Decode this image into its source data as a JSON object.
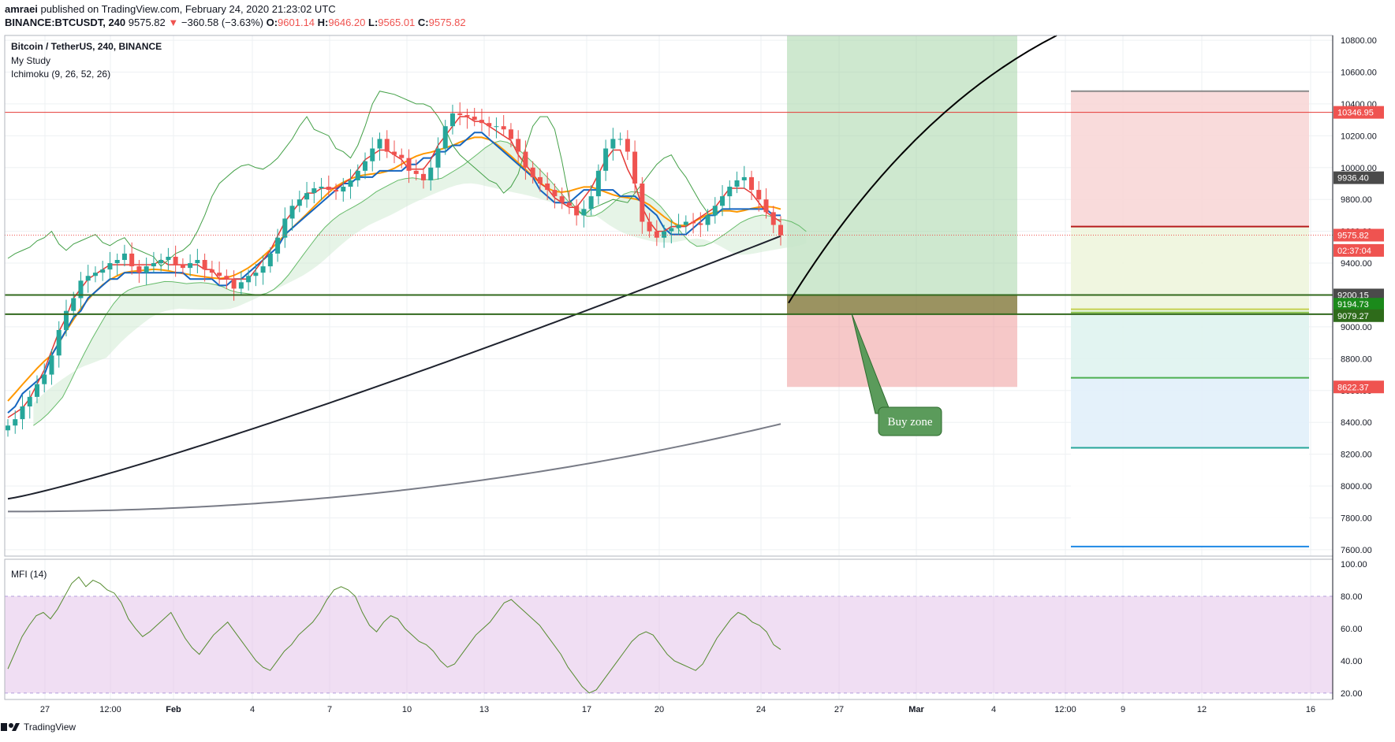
{
  "header": {
    "author": "amraei",
    "published": "published on TradingView.com, February 24, 2020 21:23:02 UTC",
    "symbol": "BINANCE:BTCUSDT, 240",
    "last": "9575.82",
    "change": "−360.58 (−3.63%)",
    "o_label": "O:",
    "o": "9601.14",
    "h_label": "H:",
    "h": "9646.20",
    "l_label": "L:",
    "l": "9565.01",
    "c_label": "C:",
    "c": "9575.82"
  },
  "legend": {
    "title": "Bitcoin / TetherUS, 240, BINANCE",
    "study": "My Study",
    "ichimoku": "Ichimoku (9, 26, 52, 26)",
    "mfi": "MFI (14)"
  },
  "annotation": {
    "text": "Buy zone"
  },
  "footer": {
    "brand": "TradingView"
  },
  "colors": {
    "up": "#26a69a",
    "down": "#ef5350",
    "tenkan": "#e53935",
    "kijun": "#1565c0",
    "ema": "#ff9800",
    "ma200": "#1e222d",
    "ma_long": "#787b86",
    "chikou": "#43a047",
    "hline_red": "#e53935",
    "hline_green": "#33691e",
    "mfi_line": "#558b2f",
    "mfi_band": "#e1bee7"
  },
  "chart_data": [
    {
      "type": "candlestick",
      "title": "Bitcoin / TetherUS, 240, BINANCE",
      "x_ticks": [
        "27",
        "12:00",
        "Feb",
        "4",
        "7",
        "10",
        "13",
        "17",
        "20",
        "24",
        "27",
        "Mar",
        "4",
        "12:00",
        "9",
        "12",
        "16"
      ],
      "y_ticks": [
        7600,
        7800,
        8000,
        8200,
        8400,
        8600,
        8800,
        9000,
        9200,
        9400,
        9600,
        9800,
        10000,
        10200,
        10400,
        10600,
        10800
      ],
      "ylim": [
        7560,
        10830
      ],
      "price_labels": [
        {
          "value": "10346.95",
          "color": "#ef5350"
        },
        {
          "value": "9936.40",
          "color": "#4a4a4a"
        },
        {
          "value": "9575.82",
          "color": "#ef5350"
        },
        {
          "value": "02:37:04",
          "color": "#ef5350"
        },
        {
          "value": "9200.15",
          "color": "#4a4a4a"
        },
        {
          "value": "9194.73",
          "color": "#1b8a1b"
        },
        {
          "value": "9079.27",
          "color": "#2e6b1a"
        },
        {
          "value": "8622.37",
          "color": "#ef5350"
        }
      ],
      "horizontal_lines": [
        10346.95,
        9200.15,
        9079.27
      ],
      "current_price": 9575.82,
      "long_position": {
        "entry": 9194.73,
        "target": 10830,
        "stop": 8622.37,
        "zone_top": 9200.15,
        "zone_bottom": 9079.27
      },
      "fib_levels": [
        10480,
        9630,
        9110,
        9090,
        8680,
        8240,
        7620
      ],
      "close_series": [
        8380,
        8420,
        8500,
        8560,
        8640,
        8700,
        8820,
        8980,
        9100,
        9180,
        9290,
        9320,
        9340,
        9360,
        9400,
        9420,
        9460,
        9380,
        9340,
        9380,
        9400,
        9420,
        9440,
        9390,
        9370,
        9400,
        9420,
        9360,
        9340,
        9320,
        9300,
        9240,
        9280,
        9320,
        9340,
        9380,
        9460,
        9560,
        9680,
        9760,
        9800,
        9840,
        9870,
        9880,
        9860,
        9850,
        9880,
        9920,
        9980,
        10040,
        10120,
        10180,
        10100,
        10080,
        10060,
        9980,
        9960,
        9920,
        10000,
        10120,
        10260,
        10340,
        10330,
        10320,
        10300,
        10280,
        10260,
        10260,
        10240,
        10180,
        10100,
        10000,
        9940,
        9900,
        9860,
        9820,
        9780,
        9760,
        9700,
        9740,
        9820,
        9980,
        10120,
        10180,
        10180,
        10100,
        9900,
        9660,
        9600,
        9560,
        9600,
        9620,
        9640,
        9660,
        9650,
        9640,
        9700,
        9760,
        9820,
        9880,
        9920,
        9940,
        9860,
        9800,
        9720,
        9640,
        9575
      ]
    },
    {
      "type": "line",
      "title": "MFI (14)",
      "y_ticks": [
        20,
        40,
        60,
        80,
        100
      ],
      "ylim": [
        16,
        103
      ],
      "band": [
        20,
        80
      ],
      "values": [
        35,
        45,
        55,
        62,
        68,
        70,
        66,
        72,
        80,
        88,
        92,
        86,
        90,
        88,
        84,
        82,
        76,
        66,
        60,
        55,
        58,
        62,
        66,
        70,
        62,
        54,
        48,
        44,
        50,
        56,
        60,
        64,
        58,
        52,
        46,
        40,
        36,
        34,
        40,
        46,
        50,
        56,
        60,
        64,
        70,
        78,
        84,
        86,
        84,
        80,
        70,
        62,
        58,
        64,
        68,
        66,
        60,
        56,
        52,
        50,
        46,
        40,
        36,
        38,
        44,
        50,
        56,
        60,
        64,
        70,
        76,
        78,
        74,
        70,
        66,
        62,
        56,
        50,
        44,
        36,
        30,
        24,
        20,
        22,
        28,
        34,
        40,
        46,
        52,
        56,
        58,
        56,
        50,
        44,
        40,
        38,
        36,
        34,
        38,
        46,
        54,
        60,
        66,
        70,
        68,
        64,
        62,
        58,
        50,
        47
      ]
    }
  ]
}
